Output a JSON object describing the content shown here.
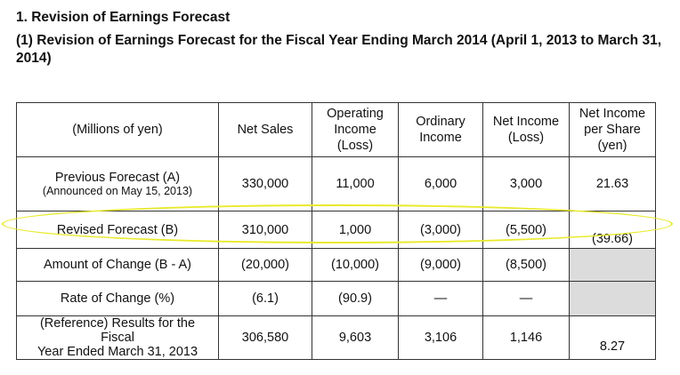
{
  "section_title": "1. Revision of Earnings Forecast",
  "subsection_title": "(1) Revision of Earnings Forecast for the Fiscal Year Ending March 2014 (April 1, 2013 to March 31, 2014)",
  "table": {
    "headers": {
      "units": "(Millions of yen)",
      "net_sales": "Net Sales",
      "operating_income": [
        "Operating",
        "Income",
        "(Loss)"
      ],
      "ordinary_income": [
        "Ordinary",
        "Income"
      ],
      "net_income": [
        "Net Income",
        "(Loss)"
      ],
      "eps": [
        "Net Income",
        "per Share",
        "(yen)"
      ]
    },
    "rows": [
      {
        "label": "Previous Forecast (A)",
        "sublabel": "(Announced on May 15, 2013)",
        "values": [
          "330,000",
          "11,000",
          "6,000",
          "3,000",
          "21.63"
        ]
      },
      {
        "label": "Revised Forecast (B)",
        "values": [
          "310,000",
          "1,000",
          "(3,000)",
          "(5,500)",
          "(39.66)"
        ]
      },
      {
        "label": "Amount of Change (B - A)",
        "values": [
          "(20,000)",
          "(10,000)",
          "(9,000)",
          "(8,500)",
          ""
        ]
      },
      {
        "label": "Rate of Change (%)",
        "values": [
          "(6.1)",
          "(90.9)",
          "—",
          "—",
          ""
        ]
      },
      {
        "label": [
          "(Reference) Results for the Fiscal",
          "Year Ended March 31, 2013"
        ],
        "values": [
          "306,580",
          "9,603",
          "3,106",
          "1,146",
          "8.27"
        ]
      }
    ]
  },
  "highlight_color": "#e8ea2a"
}
